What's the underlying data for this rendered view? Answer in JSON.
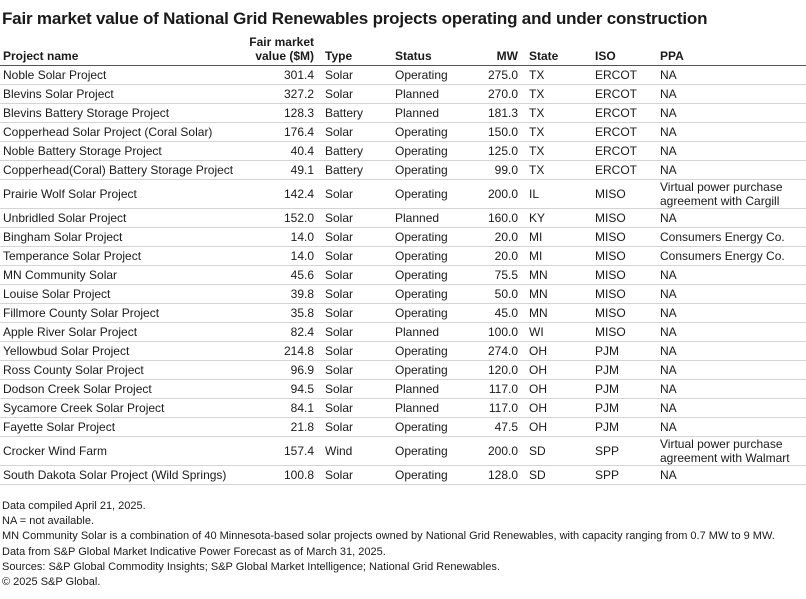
{
  "header": {
    "title": "Fair market value of National Grid Renewables projects operating and under construction"
  },
  "table": {
    "columns": [
      "Project name",
      "Fair market value ($M)",
      "Type",
      "Status",
      "MW",
      "State",
      "ISO",
      "PPA"
    ],
    "rows": [
      [
        "Noble Solar Project",
        "301.4",
        "Solar",
        "Operating",
        "275.0",
        "TX",
        "ERCOT",
        "NA"
      ],
      [
        "Blevins Solar Project",
        "327.2",
        "Solar",
        "Planned",
        "270.0",
        "TX",
        "ERCOT",
        "NA"
      ],
      [
        "Blevins Battery Storage Project",
        "128.3",
        "Battery",
        "Planned",
        "181.3",
        "TX",
        "ERCOT",
        "NA"
      ],
      [
        "Copperhead Solar Project (Coral Solar)",
        "176.4",
        "Solar",
        "Operating",
        "150.0",
        "TX",
        "ERCOT",
        "NA"
      ],
      [
        "Noble Battery Storage Project",
        "40.4",
        "Battery",
        "Operating",
        "125.0",
        "TX",
        "ERCOT",
        "NA"
      ],
      [
        "Copperhead(Coral) Battery Storage Project",
        "49.1",
        "Battery",
        "Operating",
        "99.0",
        "TX",
        "ERCOT",
        "NA"
      ],
      [
        "Prairie Wolf Solar Project",
        "142.4",
        "Solar",
        "Operating",
        "200.0",
        "IL",
        "MISO",
        "Virtual power purchase agreement with Cargill"
      ],
      [
        "Unbridled Solar Project",
        "152.0",
        "Solar",
        "Planned",
        "160.0",
        "KY",
        "MISO",
        "NA"
      ],
      [
        "Bingham Solar Project",
        "14.0",
        "Solar",
        "Operating",
        "20.0",
        "MI",
        "MISO",
        "Consumers Energy Co."
      ],
      [
        "Temperance Solar Project",
        "14.0",
        "Solar",
        "Operating",
        "20.0",
        "MI",
        "MISO",
        "Consumers Energy Co."
      ],
      [
        "MN Community Solar",
        "45.6",
        "Solar",
        "Operating",
        "75.5",
        "MN",
        "MISO",
        "NA"
      ],
      [
        "Louise Solar Project",
        "39.8",
        "Solar",
        "Operating",
        "50.0",
        "MN",
        "MISO",
        "NA"
      ],
      [
        "Fillmore County Solar Project",
        "35.8",
        "Solar",
        "Operating",
        "45.0",
        "MN",
        "MISO",
        "NA"
      ],
      [
        "Apple River Solar Project",
        "82.4",
        "Solar",
        "Planned",
        "100.0",
        "WI",
        "MISO",
        "NA"
      ],
      [
        "Yellowbud Solar Project",
        "214.8",
        "Solar",
        "Operating",
        "274.0",
        "OH",
        "PJM",
        "NA"
      ],
      [
        "Ross County Solar Project",
        "96.9",
        "Solar",
        "Operating",
        "120.0",
        "OH",
        "PJM",
        "NA"
      ],
      [
        "Dodson Creek Solar Project",
        "94.5",
        "Solar",
        "Planned",
        "117.0",
        "OH",
        "PJM",
        "NA"
      ],
      [
        "Sycamore Creek Solar Project",
        "84.1",
        "Solar",
        "Planned",
        "117.0",
        "OH",
        "PJM",
        "NA"
      ],
      [
        "Fayette Solar Project",
        "21.8",
        "Solar",
        "Operating",
        "47.5",
        "OH",
        "PJM",
        "NA"
      ],
      [
        "Crocker Wind Farm",
        "157.4",
        "Wind",
        "Operating",
        "200.0",
        "SD",
        "SPP",
        "Virtual power purchase agreement with Walmart"
      ],
      [
        "South Dakota Solar Project (Wild Springs)",
        "100.8",
        "Solar",
        "Operating",
        "128.0",
        "SD",
        "SPP",
        "NA"
      ]
    ]
  },
  "notes": [
    "Data compiled April 21, 2025.",
    "NA = not available.",
    "MN Community Solar is a combination of 40 Minnesota-based solar projects owned by National Grid Renewables, with capacity ranging from 0.7 MW to 9 MW.",
    "Data from S&P Global Market Indicative Power Forecast as of March 31, 2025.",
    "Sources: S&P Global Commodity Insights; S&P Global Market Intelligence; National Grid Renewables.",
    "© 2025 S&P Global."
  ]
}
